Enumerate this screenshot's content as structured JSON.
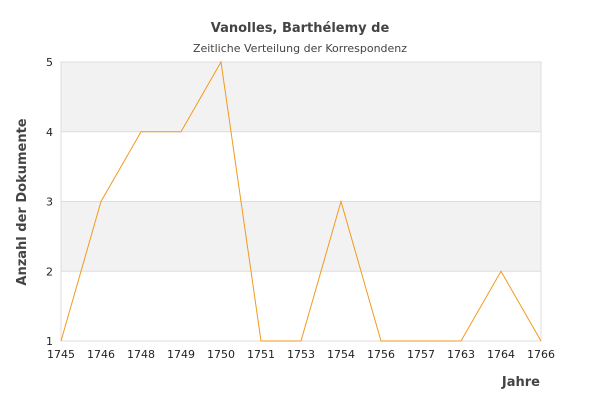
{
  "chart_data": {
    "type": "line",
    "title": "Vanolles, Barthélemy de",
    "subtitle": "Zeitliche Verteilung der Korrespondenz",
    "xlabel": "Jahre",
    "ylabel": "Anzahl der Dokumente",
    "categories": [
      "1745",
      "1746",
      "1748",
      "1749",
      "1750",
      "1751",
      "1753",
      "1754",
      "1756",
      "1757",
      "1763",
      "1764",
      "1766"
    ],
    "series": [
      {
        "values": [
          1,
          3,
          4,
          4,
          5,
          1,
          1,
          3,
          1,
          1,
          1,
          2,
          1
        ],
        "color": "#f29a1f"
      }
    ],
    "ylim": [
      1,
      5
    ],
    "yticks": [
      1,
      2,
      3,
      4,
      5
    ],
    "grid": "horizontal",
    "band_colors": [
      "#ffffff",
      "#f2f2f2"
    ],
    "gridline_color": "#dddddd"
  }
}
